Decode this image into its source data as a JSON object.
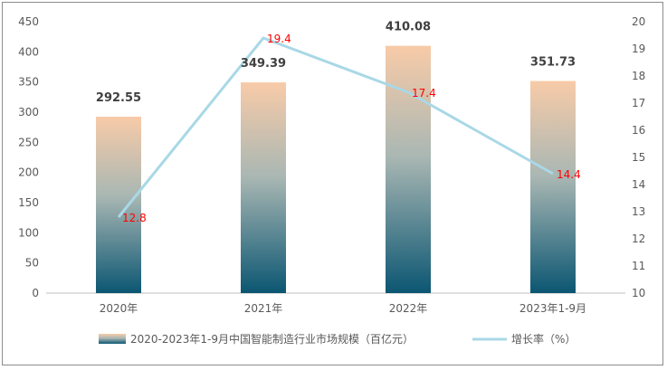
{
  "chart_data": {
    "type": "bar",
    "categories": [
      "2020年",
      "2021年",
      "2022年",
      "2023年1-9月"
    ],
    "series": [
      {
        "name": "2020-2023年1-9月中国智能制造行业市场规模（百亿元）",
        "type": "bar",
        "axis": "left",
        "values": [
          292.55,
          349.39,
          410.08,
          351.73
        ],
        "labels": [
          "292.55",
          "349.39",
          "410.08",
          "351.73"
        ]
      },
      {
        "name": "增长率（%）",
        "type": "line",
        "axis": "right",
        "values": [
          12.8,
          19.4,
          17.4,
          14.4
        ],
        "labels": [
          "12.8",
          "19.4",
          "17.4",
          "14.4"
        ]
      }
    ],
    "ylim_left": [
      0,
      450
    ],
    "ylim_right": [
      10,
      20
    ],
    "left_ticks": [
      "0",
      "50",
      "100",
      "150",
      "200",
      "250",
      "300",
      "350",
      "400",
      "450"
    ],
    "right_ticks": [
      "10",
      "11",
      "12",
      "13",
      "14",
      "15",
      "16",
      "17",
      "18",
      "19",
      "20"
    ],
    "grid": false,
    "legend_position": "bottom",
    "colors": {
      "bar_top": "#f8cba8",
      "bar_mid": "#a9b7b3",
      "bar_bottom": "#0b5672",
      "line": "#a9d8e6",
      "line_labels": "#ff0000",
      "bar_labels": "#404040"
    }
  }
}
